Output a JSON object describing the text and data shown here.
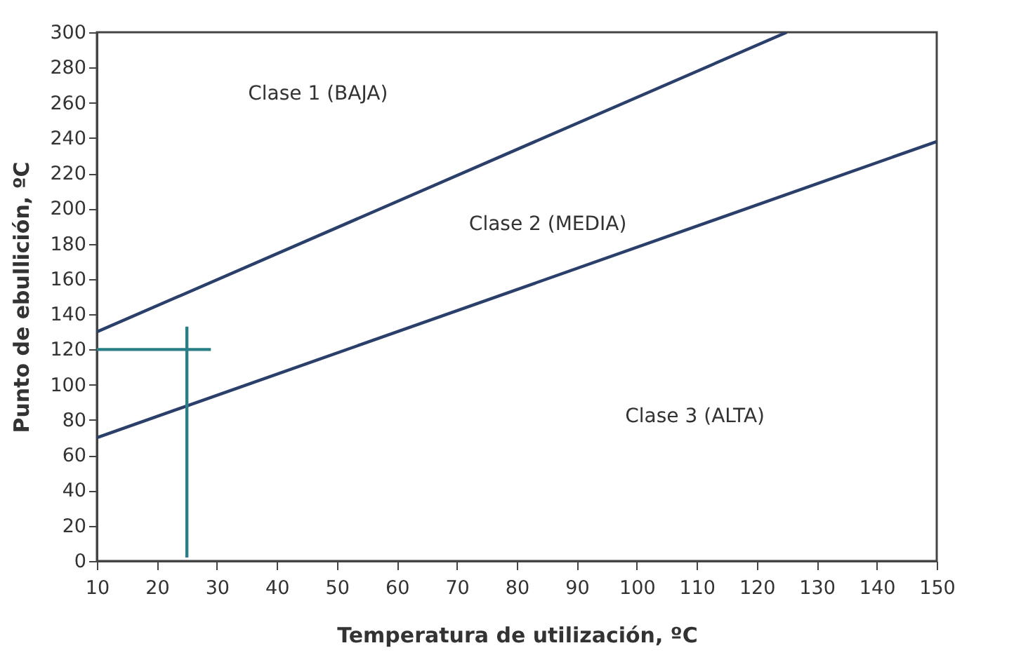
{
  "chart_data": {
    "type": "line",
    "xlabel": "Temperatura de utilización, ºC",
    "ylabel": "Punto de ebullición, ºC",
    "xlim": [
      10,
      150
    ],
    "ylim": [
      0,
      300
    ],
    "xticks": [
      10,
      20,
      30,
      40,
      50,
      60,
      70,
      80,
      90,
      100,
      110,
      120,
      130,
      140,
      150
    ],
    "yticks": [
      0,
      20,
      40,
      60,
      80,
      100,
      120,
      140,
      160,
      180,
      200,
      220,
      240,
      260,
      280,
      300
    ],
    "grid": false,
    "marker": "none",
    "line_style": "solid",
    "series": [
      {
        "color": "#2b3f6b",
        "x": [
          10,
          125
        ],
        "values": [
          130,
          300
        ]
      },
      {
        "color": "#2b3f6b",
        "x": [
          10,
          150
        ],
        "values": [
          70,
          238
        ]
      },
      {
        "color": "#2a7f86",
        "x": [
          25,
          25
        ],
        "values": [
          2,
          133
        ]
      },
      {
        "color": "#2a7f86",
        "x": [
          10,
          29
        ],
        "values": [
          120,
          120
        ]
      }
    ],
    "annotations": [
      "Clase 1 (BAJA)",
      "Clase 2 (MEDIA)",
      "Clase 3 (ALTA)"
    ]
  }
}
